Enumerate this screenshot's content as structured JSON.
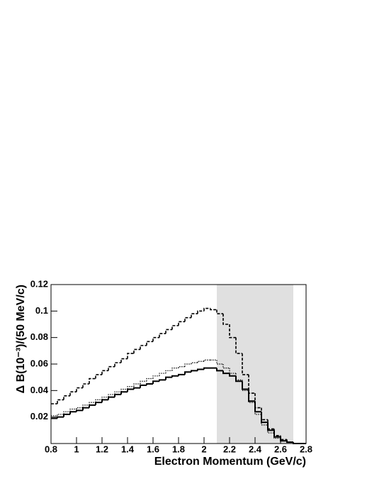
{
  "chart_data": {
    "type": "step-histogram",
    "x_label": "Electron Momentum (GeV/c)",
    "y_label": "Δ B(10⁻³)/(50 MeV/c)",
    "xlim": [
      0.8,
      2.8
    ],
    "ylim": [
      0,
      0.12
    ],
    "xticks": [
      0.8,
      1,
      1.2,
      1.4,
      1.6,
      1.8,
      2,
      2.2,
      2.4,
      2.6,
      2.8
    ],
    "yticks": [
      0.02,
      0.04,
      0.06,
      0.08,
      0.1,
      0.12
    ],
    "shaded_region": [
      2.1,
      2.7
    ],
    "shaded_color": "#e0e0e0",
    "bins": [
      0.8,
      0.85,
      0.9,
      0.95,
      1.0,
      1.05,
      1.1,
      1.15,
      1.2,
      1.25,
      1.3,
      1.35,
      1.4,
      1.45,
      1.5,
      1.55,
      1.6,
      1.65,
      1.7,
      1.75,
      1.8,
      1.85,
      1.9,
      1.95,
      2.0,
      2.05,
      2.1,
      2.15,
      2.2,
      2.25,
      2.3,
      2.35,
      2.4,
      2.45,
      2.5,
      2.55,
      2.6,
      2.65,
      2.7,
      2.75,
      2.8
    ],
    "series": [
      {
        "color": "#000000",
        "dash": "solid",
        "width": 2,
        "values": [
          0.019,
          0.02,
          0.022,
          0.024,
          0.025,
          0.027,
          0.029,
          0.031,
          0.033,
          0.035,
          0.037,
          0.039,
          0.041,
          0.042,
          0.044,
          0.045,
          0.047,
          0.048,
          0.05,
          0.051,
          0.052,
          0.054,
          0.055,
          0.056,
          0.057,
          0.057,
          0.055,
          0.053,
          0.051,
          0.047,
          0.041,
          0.032,
          0.024,
          0.016,
          0.01,
          0.005,
          0.002,
          0.001,
          0,
          0
        ]
      },
      {
        "color": "#000000",
        "dash": "dotted",
        "width": 1.2,
        "values": [
          0.021,
          0.022,
          0.024,
          0.026,
          0.027,
          0.029,
          0.031,
          0.033,
          0.035,
          0.037,
          0.039,
          0.041,
          0.043,
          0.045,
          0.047,
          0.049,
          0.051,
          0.053,
          0.055,
          0.057,
          0.058,
          0.06,
          0.061,
          0.062,
          0.063,
          0.063,
          0.06,
          0.057,
          0.053,
          0.048,
          0.04,
          0.031,
          0.022,
          0.014,
          0.008,
          0.004,
          0.002,
          0.001,
          0,
          0
        ]
      },
      {
        "color": "#000000",
        "dash": "dashed",
        "width": 1.6,
        "values": [
          0.03,
          0.033,
          0.036,
          0.039,
          0.042,
          0.045,
          0.049,
          0.052,
          0.055,
          0.058,
          0.061,
          0.064,
          0.068,
          0.071,
          0.074,
          0.077,
          0.08,
          0.083,
          0.086,
          0.089,
          0.092,
          0.095,
          0.098,
          0.1,
          0.102,
          0.101,
          0.098,
          0.09,
          0.08,
          0.068,
          0.052,
          0.038,
          0.027,
          0.018,
          0.011,
          0.006,
          0.003,
          0.001,
          0,
          0
        ]
      }
    ]
  }
}
